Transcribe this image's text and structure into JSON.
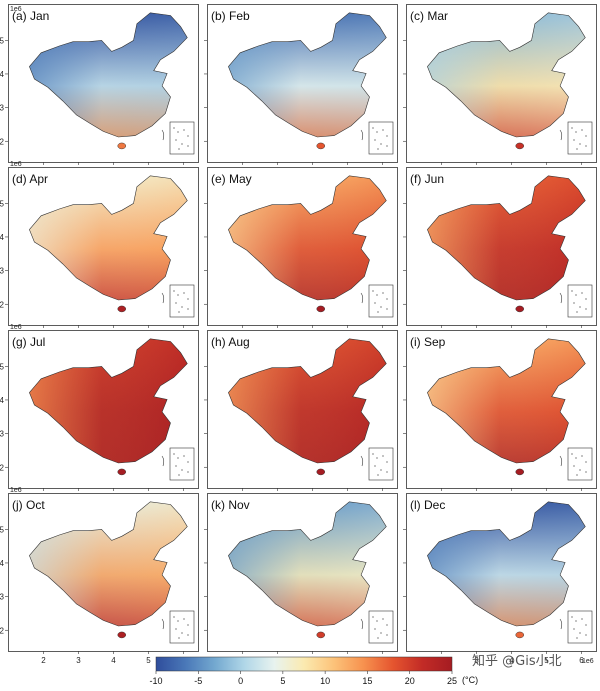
{
  "figure": {
    "watermark": "知乎 @Gis小北"
  },
  "chart_data": {
    "type": "heatmap",
    "description_units": "°C",
    "panels": [
      {
        "label": "(a) Jan",
        "month": "Jan",
        "north_temp": -10,
        "south_temp": 14,
        "west_temp": -6,
        "east_temp": -4
      },
      {
        "label": "(b) Feb",
        "month": "Feb",
        "north_temp": -8,
        "south_temp": 16,
        "west_temp": -4,
        "east_temp": -2
      },
      {
        "label": "(c) Mar",
        "month": "Mar",
        "north_temp": -2,
        "south_temp": 19,
        "west_temp": 0,
        "east_temp": 4
      },
      {
        "label": "(d) Apr",
        "month": "Apr",
        "north_temp": 6,
        "south_temp": 22,
        "west_temp": 5,
        "east_temp": 12
      },
      {
        "label": "(e) May",
        "month": "May",
        "north_temp": 13,
        "south_temp": 25,
        "west_temp": 9,
        "east_temp": 18
      },
      {
        "label": "(f) Jun",
        "month": "Jun",
        "north_temp": 18,
        "south_temp": 26,
        "west_temp": 12,
        "east_temp": 22
      },
      {
        "label": "(g) Jul",
        "month": "Jul",
        "north_temp": 21,
        "south_temp": 27,
        "west_temp": 14,
        "east_temp": 25
      },
      {
        "label": "(h) Aug",
        "month": "Aug",
        "north_temp": 19,
        "south_temp": 27,
        "west_temp": 13,
        "east_temp": 24
      },
      {
        "label": "(i) Sep",
        "month": "Sep",
        "north_temp": 13,
        "south_temp": 25,
        "west_temp": 9,
        "east_temp": 18
      },
      {
        "label": "(j) Oct",
        "month": "Oct",
        "north_temp": 5,
        "south_temp": 22,
        "west_temp": 2,
        "east_temp": 10
      },
      {
        "label": "(k) Nov",
        "month": "Nov",
        "north_temp": -4,
        "south_temp": 18,
        "west_temp": -4,
        "east_temp": 2
      },
      {
        "label": "(l) Dec",
        "month": "Dec",
        "north_temp": -10,
        "south_temp": 15,
        "west_temp": -6,
        "east_temp": -4
      }
    ],
    "x_axis": {
      "ticks": [
        "2",
        "3",
        "4",
        "5",
        "6"
      ],
      "exponent": "1e6",
      "range": [
        1.5,
        6.3
      ]
    },
    "y_axis": {
      "ticks": [
        "2",
        "3",
        "4",
        "5"
      ],
      "exponent": "1e6",
      "range": [
        1.8,
        5.9
      ]
    },
    "colorbar": {
      "ticks": [
        "-10",
        "-5",
        "0",
        "5",
        "10",
        "15",
        "20",
        "25"
      ],
      "unit": "(°C)",
      "range": [
        -10,
        25
      ],
      "colors": [
        "#2f4d9c",
        "#4a78b8",
        "#74a9d0",
        "#b1d7e8",
        "#e8f3ef",
        "#fbeab0",
        "#fcc37a",
        "#f7924f",
        "#e5552f",
        "#c22b26",
        "#a51c22"
      ]
    }
  }
}
